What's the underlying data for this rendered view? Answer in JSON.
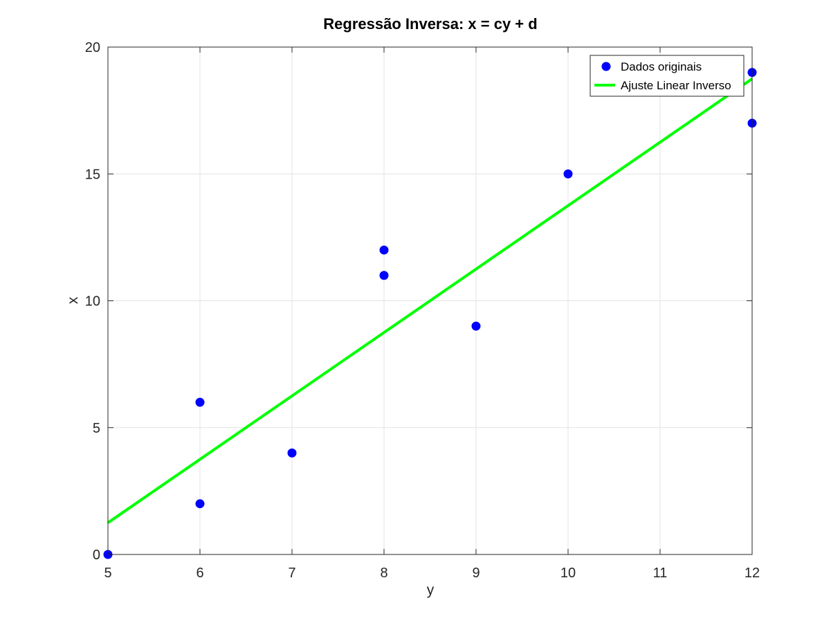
{
  "chart_data": {
    "type": "scatter",
    "title": "Regressão Inversa: x = cy + d",
    "xlabel": "y",
    "ylabel": "x",
    "xlim": [
      5,
      12
    ],
    "ylim": [
      0,
      20
    ],
    "xticks": [
      "5",
      "6",
      "7",
      "8",
      "9",
      "10",
      "11",
      "12"
    ],
    "yticks": [
      "0",
      "5",
      "10",
      "15",
      "20"
    ],
    "grid": true,
    "legend_position": "top-right",
    "series": [
      {
        "name": "Dados originais",
        "kind": "scatter",
        "color": "#0000ff",
        "points": [
          {
            "x": 5,
            "y": 0
          },
          {
            "x": 6,
            "y": 2
          },
          {
            "x": 6,
            "y": 6
          },
          {
            "x": 7,
            "y": 4
          },
          {
            "x": 8,
            "y": 11
          },
          {
            "x": 8,
            "y": 12
          },
          {
            "x": 9,
            "y": 9
          },
          {
            "x": 10,
            "y": 15
          },
          {
            "x": 12,
            "y": 17
          },
          {
            "x": 12,
            "y": 19
          }
        ]
      },
      {
        "name": "Ajuste Linear Inverso",
        "kind": "line",
        "color": "#00ff00",
        "points": [
          {
            "x": 5,
            "y": 1.25
          },
          {
            "x": 12,
            "y": 18.75
          }
        ]
      }
    ]
  }
}
